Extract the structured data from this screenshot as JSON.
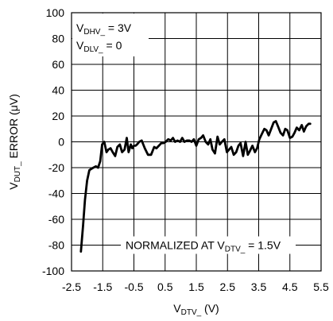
{
  "chart_data": {
    "type": "line",
    "xlabel": {
      "main": "V",
      "sub": "DTV_",
      "tail": " (V)"
    },
    "ylabel": {
      "main": "V",
      "sub": "DUT_",
      "tail": " ERROR (μV)"
    },
    "xlim": [
      -2.5,
      5.5
    ],
    "ylim": [
      -100,
      100
    ],
    "xticks": [
      -2.5,
      -1.5,
      -0.5,
      0.5,
      1.5,
      2.5,
      3.5,
      4.5,
      5.5
    ],
    "xtick_labels": [
      "-2.5",
      "-1.5",
      "-0.5",
      "0.5",
      "1.5",
      "2.5",
      "3.5",
      "4.5",
      "5.5"
    ],
    "yticks": [
      100,
      80,
      60,
      40,
      20,
      0,
      -20,
      -40,
      -60,
      -80,
      -100
    ],
    "ytick_labels": [
      "100",
      "80",
      "60",
      "40",
      "20",
      "0",
      "-20",
      "-40",
      "-60",
      "-80",
      "-100"
    ],
    "grid": true,
    "annotations": [
      {
        "main": "V",
        "sub": "DHV_",
        "tail": " = 3V"
      },
      {
        "main": "V",
        "sub": "DLV_",
        "tail": " = 0"
      },
      {
        "main": "NORMALIZED AT V",
        "sub": "DTV_",
        "tail": " = 1.5V"
      }
    ],
    "series": [
      {
        "x": [
          -2.2,
          -2.13,
          -2.07,
          -2.0,
          -1.93,
          -1.87,
          -1.8,
          -1.72,
          -1.65,
          -1.58,
          -1.52,
          -1.45,
          -1.38,
          -1.32,
          -1.25,
          -1.18,
          -1.1,
          -1.03,
          -0.95,
          -0.88,
          -0.8,
          -0.73,
          -0.67,
          -0.6,
          -0.55,
          -0.5,
          -0.45,
          -0.4,
          -0.33,
          -0.25,
          -0.15,
          -0.05,
          0.05,
          0.15,
          0.22,
          0.3,
          0.38,
          0.45,
          0.52,
          0.6,
          0.68,
          0.75,
          0.82,
          0.9,
          0.98,
          1.05,
          1.12,
          1.2,
          1.28,
          1.35,
          1.42,
          1.5,
          1.58,
          1.65,
          1.72,
          1.8,
          1.88,
          1.95,
          2.02,
          2.1,
          2.18,
          2.25,
          2.32,
          2.4,
          2.48,
          2.55,
          2.62,
          2.7,
          2.78,
          2.85,
          2.92,
          3.0,
          3.08,
          3.15,
          3.22,
          3.3,
          3.38,
          3.45,
          3.52,
          3.6,
          3.68,
          3.75,
          3.82,
          3.9,
          3.98,
          4.05,
          4.12,
          4.2,
          4.28,
          4.35,
          4.42,
          4.5,
          4.58,
          4.65,
          4.72,
          4.8,
          4.88,
          4.95,
          5.02,
          5.1,
          5.15
        ],
        "y": [
          -85,
          -65,
          -45,
          -30,
          -22,
          -21,
          -20,
          -19,
          -20,
          -15,
          -2,
          0,
          -8,
          -6,
          -5,
          -8,
          -11,
          -4,
          -2,
          -8,
          -6,
          3,
          -8,
          -2,
          -5,
          -3,
          -3,
          -2,
          0,
          1,
          -5,
          -10,
          -10,
          -4,
          -5,
          -3,
          -1,
          -1,
          0,
          2,
          1,
          3,
          0,
          1,
          0,
          3,
          0,
          1,
          1,
          0,
          2,
          -3,
          2,
          3,
          5,
          0,
          -2,
          2,
          -6,
          -9,
          4,
          -2,
          0,
          2,
          -8,
          -6,
          -4,
          -10,
          -8,
          -3,
          -1,
          -11,
          0,
          -10,
          -7,
          -3,
          -8,
          -5,
          2,
          6,
          10,
          9,
          5,
          10,
          15,
          16,
          12,
          7,
          5,
          10,
          9,
          3,
          4,
          7,
          11,
          9,
          13,
          8,
          12,
          14,
          14
        ]
      }
    ]
  }
}
